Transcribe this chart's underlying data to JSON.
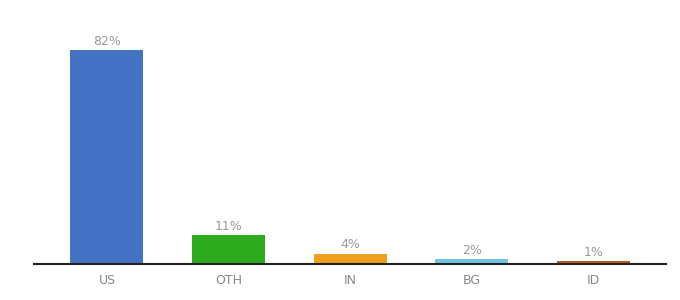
{
  "categories": [
    "US",
    "OTH",
    "IN",
    "BG",
    "ID"
  ],
  "values": [
    82,
    11,
    4,
    2,
    1
  ],
  "labels": [
    "82%",
    "11%",
    "4%",
    "2%",
    "1%"
  ],
  "bar_colors": [
    "#4472c4",
    "#2eaa1e",
    "#f0a020",
    "#72c4e0",
    "#b85a20"
  ],
  "label_fontsize": 9,
  "tick_fontsize": 9,
  "background_color": "#ffffff",
  "ylim": [
    0,
    92
  ],
  "bar_width": 0.6,
  "label_color": "#999999",
  "tick_color": "#888888",
  "spine_color": "#222222"
}
